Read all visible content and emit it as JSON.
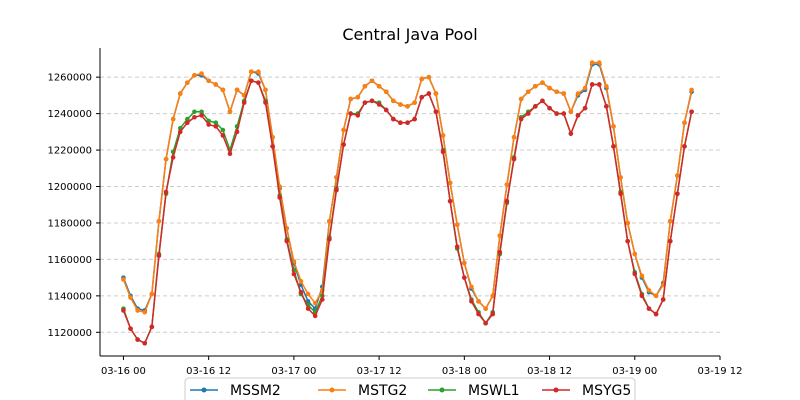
{
  "chart_data": {
    "type": "line",
    "title": "Central Java Pool",
    "xlabel": "",
    "ylabel": "",
    "x_start": "03-16 00",
    "x_step_hours": 1,
    "x_ticks": [
      "03-16 00",
      "03-16 12",
      "03-17 00",
      "03-17 12",
      "03-18 00",
      "03-18 12",
      "03-19 00",
      "03-19 12"
    ],
    "xlim_hours": [
      -3.3,
      84.0
    ],
    "ylim": [
      1107000,
      1276000
    ],
    "y_ticks": [
      1120000,
      1140000,
      1160000,
      1180000,
      1200000,
      1220000,
      1240000,
      1260000
    ],
    "y_tick_labels": [
      "1120000",
      "1140000",
      "1160000",
      "1180000",
      "1200000",
      "1220000",
      "1240000",
      "1260000"
    ],
    "grid": {
      "y": true,
      "x": false,
      "style": "dashed",
      "color": "#cccccc"
    },
    "legend_position": "bottom-center",
    "series": [
      {
        "name": "MSSM2",
        "color": "#1f77b4",
        "values": [
          1150000,
          1140000,
          1133000,
          1132000,
          1141000,
          1181000,
          1215000,
          1237000,
          1251000,
          1257000,
          1261000,
          1261000,
          1258000,
          1256000,
          1253000,
          1241000,
          1253000,
          1250000,
          1263000,
          1262000,
          1253000,
          1227000,
          1199000,
          1177000,
          1158000,
          1146000,
          1137000,
          1133000,
          1145000,
          1181000,
          1205000,
          1231000,
          1248000,
          1249000,
          1255000,
          1258000,
          1255000,
          1252000,
          1247000,
          1245000,
          1244000,
          1246000,
          1259000,
          1260000,
          1251000,
          1228000,
          1202000,
          1179000,
          1158000,
          1144000,
          1137000,
          1133000,
          1140000,
          1173000,
          1201000,
          1227000,
          1248000,
          1252000,
          1255000,
          1257000,
          1254000,
          1252000,
          1251000,
          1241000,
          1250000,
          1253000,
          1267000,
          1267000,
          1254000,
          1233000,
          1205000,
          1180000,
          1163000,
          1150000,
          1142000,
          1140000,
          1147000,
          1181000,
          1206000,
          1235000,
          1252000
        ]
      },
      {
        "name": "MSTG2",
        "color": "#ff7f0e",
        "values": [
          1149000,
          1139000,
          1132000,
          1131000,
          1141000,
          1181000,
          1215000,
          1237000,
          1251000,
          1257000,
          1261000,
          1262000,
          1258000,
          1256000,
          1253000,
          1241000,
          1253000,
          1250000,
          1263000,
          1263000,
          1253000,
          1227000,
          1200000,
          1177000,
          1159000,
          1148000,
          1141000,
          1136000,
          1143000,
          1181000,
          1205000,
          1231000,
          1248000,
          1249000,
          1255000,
          1258000,
          1255000,
          1252000,
          1247000,
          1245000,
          1244000,
          1246000,
          1259000,
          1260000,
          1251000,
          1228000,
          1202000,
          1179000,
          1158000,
          1145000,
          1137000,
          1133000,
          1140000,
          1173000,
          1201000,
          1227000,
          1248000,
          1252000,
          1255000,
          1257000,
          1254000,
          1252000,
          1251000,
          1241000,
          1251000,
          1254000,
          1268000,
          1268000,
          1255000,
          1233000,
          1205000,
          1180000,
          1163000,
          1151000,
          1143000,
          1140000,
          1146000,
          1181000,
          1206000,
          1235000,
          1253000
        ]
      },
      {
        "name": "MSWL1",
        "color": "#2ca02c",
        "values": [
          1133000,
          1122000,
          1116000,
          1114000,
          1123000,
          1163000,
          1196000,
          1219000,
          1232000,
          1237000,
          1241000,
          1241000,
          1236000,
          1235000,
          1231000,
          1220000,
          1233000,
          1247000,
          1258000,
          1257000,
          1247000,
          1222000,
          1195000,
          1171000,
          1154000,
          1141000,
          1135000,
          1131000,
          1140000,
          1172000,
          1199000,
          1223000,
          1240000,
          1240000,
          1246000,
          1247000,
          1246000,
          1242000,
          1237000,
          1235000,
          1235000,
          1237000,
          1249000,
          1251000,
          1241000,
          1220000,
          1192000,
          1166000,
          1150000,
          1138000,
          1131000,
          1125000,
          1131000,
          1163000,
          1191000,
          1216000,
          1238000,
          1241000,
          1244000,
          1247000,
          1243000,
          1240000,
          1240000,
          1229000,
          1239000,
          1243000,
          1256000,
          1256000,
          1244000,
          1222000,
          1197000,
          1170000,
          1153000,
          1141000,
          1133000,
          1130000,
          1138000,
          1170000,
          1196000,
          1222000,
          1241000
        ]
      },
      {
        "name": "MSYG5",
        "color": "#d62728",
        "values": [
          1132000,
          1122000,
          1116000,
          1114000,
          1123000,
          1162000,
          1197000,
          1216000,
          1230000,
          1235000,
          1238000,
          1239000,
          1234000,
          1233000,
          1228000,
          1218000,
          1230000,
          1246000,
          1258000,
          1257000,
          1246000,
          1222000,
          1194000,
          1170000,
          1152000,
          1142000,
          1133000,
          1129000,
          1138000,
          1171000,
          1198000,
          1223000,
          1240000,
          1239000,
          1246000,
          1247000,
          1245000,
          1242000,
          1237000,
          1235000,
          1235000,
          1237000,
          1249000,
          1251000,
          1241000,
          1219000,
          1192000,
          1167000,
          1150000,
          1137000,
          1130000,
          1125000,
          1130000,
          1164000,
          1192000,
          1215000,
          1237000,
          1240000,
          1244000,
          1247000,
          1243000,
          1240000,
          1240000,
          1229000,
          1239000,
          1243000,
          1256000,
          1256000,
          1244000,
          1222000,
          1196000,
          1170000,
          1152000,
          1140000,
          1133000,
          1130000,
          1138000,
          1170000,
          1196000,
          1222000,
          1241000
        ]
      }
    ]
  }
}
